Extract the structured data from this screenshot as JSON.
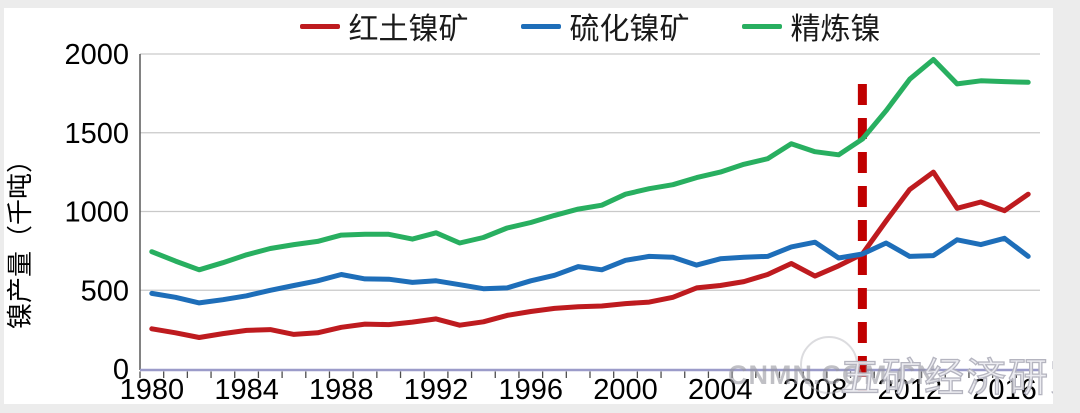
{
  "legend": {
    "items": [
      {
        "id": "laterite",
        "label": "红土镍矿",
        "color": "#be1b1f"
      },
      {
        "id": "sulfide",
        "label": "硫化镍矿",
        "color": "#1e6eb9"
      },
      {
        "id": "refined",
        "label": "精炼镍",
        "color": "#28af60"
      }
    ]
  },
  "watermark": {
    "site": "CNMN.COM.CN",
    "org": "五矿经济研究院"
  },
  "chart_data": {
    "type": "line",
    "title": "",
    "xlabel": "",
    "ylabel": "镍产量（千吨）",
    "ylim": [
      0,
      2000
    ],
    "y_ticks": [
      0,
      500,
      1000,
      1500,
      2000
    ],
    "x_tick_labels": [
      1980,
      1984,
      1988,
      1992,
      1996,
      2000,
      2004,
      2008,
      2012,
      2016
    ],
    "grid": "horizontal",
    "legend_position": "top",
    "x": [
      1980,
      1981,
      1982,
      1983,
      1984,
      1985,
      1986,
      1987,
      1988,
      1989,
      1990,
      1991,
      1992,
      1993,
      1994,
      1995,
      1996,
      1997,
      1998,
      1999,
      2000,
      2001,
      2002,
      2003,
      2004,
      2005,
      2006,
      2007,
      2008,
      2009,
      2010,
      2011,
      2012,
      2013,
      2014,
      2015,
      2016,
      2017
    ],
    "series": [
      {
        "id": "laterite",
        "name": "红土镍矿",
        "color": "#be1b1f",
        "values": [
          255,
          230,
          200,
          225,
          245,
          250,
          220,
          230,
          265,
          285,
          282,
          298,
          318,
          278,
          300,
          340,
          365,
          385,
          395,
          400,
          415,
          425,
          455,
          515,
          530,
          555,
          600,
          670,
          590,
          655,
          730,
          940,
          1140,
          1250,
          1020,
          1060,
          1005,
          1110
        ]
      },
      {
        "id": "sulfide",
        "name": "硫化镍矿",
        "color": "#1e6eb9",
        "values": [
          480,
          455,
          420,
          440,
          465,
          500,
          530,
          560,
          600,
          572,
          570,
          550,
          560,
          535,
          510,
          515,
          560,
          595,
          650,
          630,
          690,
          715,
          710,
          660,
          700,
          710,
          715,
          775,
          805,
          705,
          730,
          800,
          715,
          720,
          820,
          790,
          830,
          715
        ]
      },
      {
        "id": "refined",
        "name": "精炼镍",
        "color": "#28af60",
        "values": [
          745,
          685,
          630,
          675,
          725,
          765,
          790,
          810,
          850,
          855,
          855,
          825,
          865,
          800,
          835,
          895,
          930,
          975,
          1015,
          1040,
          1110,
          1145,
          1170,
          1215,
          1250,
          1300,
          1335,
          1430,
          1380,
          1360,
          1460,
          1640,
          1840,
          1965,
          1810,
          1830,
          1825,
          1820
        ]
      }
    ],
    "annotations": [
      {
        "type": "vline",
        "x": 2010,
        "style": "dashed",
        "color": "#c00000"
      }
    ]
  },
  "axis_colors": {
    "grid": "#c9c9c9",
    "left_axis": "#595959",
    "bottom_axis": "#9b9bc9",
    "tick": "#4d4d4d",
    "label": "#000000"
  }
}
